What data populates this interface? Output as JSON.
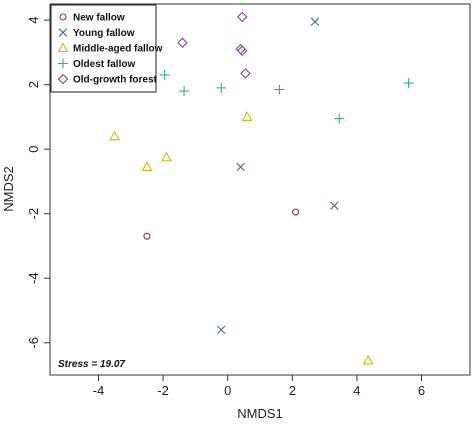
{
  "chart_data": {
    "type": "scatter",
    "title": "",
    "xlabel": "NMDS1",
    "ylabel": "NMDS2",
    "xlim": [
      -5.5,
      7.5
    ],
    "ylim": [
      -7,
      4.5
    ],
    "xticks": [
      -4,
      -2,
      0,
      2,
      4,
      6
    ],
    "yticks": [
      -6,
      -4,
      -2,
      0,
      2,
      4
    ],
    "grid": false,
    "legend_position": "top-left",
    "annotation": "Stress = 19.07",
    "series": [
      {
        "name": "New fallow",
        "marker": "circle",
        "color": "#9c2d52",
        "points": [
          {
            "x": -2.5,
            "y": -2.7
          },
          {
            "x": 2.1,
            "y": -1.95
          }
        ]
      },
      {
        "name": "Young fallow",
        "marker": "x",
        "color": "#3d6f8a",
        "points": [
          {
            "x": 2.7,
            "y": 3.95
          },
          {
            "x": 0.4,
            "y": -0.55
          },
          {
            "x": 3.3,
            "y": -1.75
          },
          {
            "x": -0.2,
            "y": -5.6
          }
        ]
      },
      {
        "name": "Middle-aged fallow",
        "marker": "triangle",
        "color": "#c8c200",
        "points": [
          {
            "x": -3.5,
            "y": 0.4
          },
          {
            "x": -1.9,
            "y": -0.25
          },
          {
            "x": -2.5,
            "y": -0.55
          },
          {
            "x": 0.6,
            "y": 1.0
          },
          {
            "x": 4.35,
            "y": -6.55
          }
        ]
      },
      {
        "name": "Oldest fallow",
        "marker": "plus",
        "color": "#2fb37a",
        "points": [
          {
            "x": -1.95,
            "y": 2.3
          },
          {
            "x": -1.35,
            "y": 1.8
          },
          {
            "x": -0.2,
            "y": 1.9
          },
          {
            "x": 1.6,
            "y": 1.85
          },
          {
            "x": 3.45,
            "y": 0.95
          },
          {
            "x": 5.6,
            "y": 2.05
          }
        ]
      },
      {
        "name": "Old-growth forest",
        "marker": "diamond",
        "color": "#8e3d96",
        "points": [
          {
            "x": 0.45,
            "y": 4.1
          },
          {
            "x": -1.4,
            "y": 3.3
          },
          {
            "x": 0.4,
            "y": 3.1
          },
          {
            "x": 0.45,
            "y": 3.05
          },
          {
            "x": 0.55,
            "y": 2.35
          }
        ]
      }
    ]
  }
}
